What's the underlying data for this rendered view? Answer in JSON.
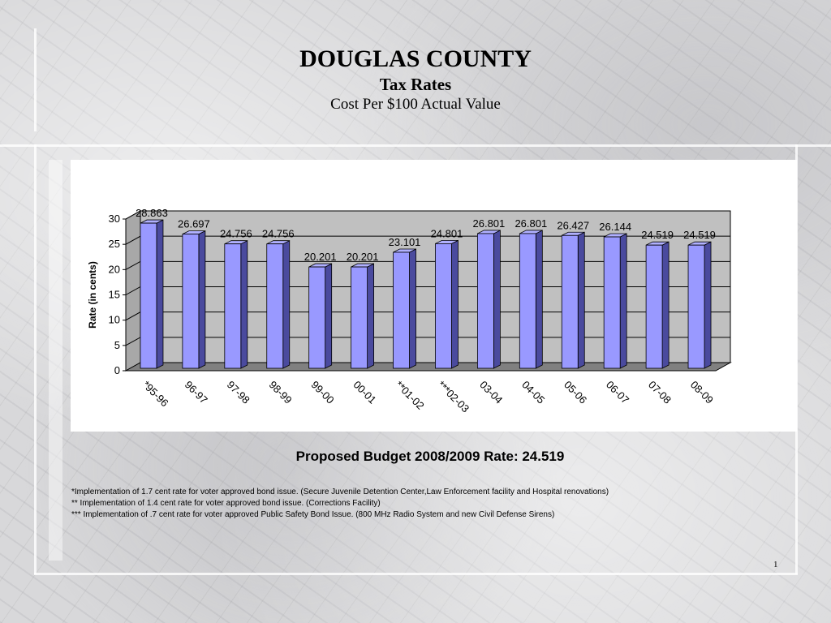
{
  "slide": {
    "title": "DOUGLAS COUNTY",
    "subtitle": "Tax Rates",
    "caption": "Cost Per $100 Actual Value",
    "proposed": "Proposed Budget 2008/2009 Rate: 24.519",
    "footnotes": [
      "*Implementation of 1.7 cent rate for voter approved bond issue. (Secure Juvenile Detention Center,Law Enforcement facility and Hospital renovations)",
      "** Implementation of 1.4 cent rate for voter approved bond issue. (Corrections Facility)",
      "*** Implementation of .7 cent rate for voter approved Public Safety Bond Issue. (800 MHz Radio System and new Civil Defense Sirens)"
    ],
    "page_number": "1"
  },
  "chart_data": {
    "type": "bar",
    "categories": [
      "*95-96",
      "96-97",
      "97-98",
      "98-99",
      "99-00",
      "00-01",
      "**01-02",
      "***02-03",
      "03-04",
      "04-05",
      "05-06",
      "06-07",
      "07-08",
      "08-09"
    ],
    "values": [
      28.863,
      26.697,
      24.756,
      24.756,
      20.201,
      20.201,
      23.101,
      24.801,
      26.801,
      26.801,
      26.427,
      26.144,
      24.519,
      24.519
    ],
    "data_labels": [
      "28.863",
      "26.697",
      "24.756",
      "24.756",
      "20.201",
      "20.201",
      "23.101",
      "24.801",
      "26.801",
      "26.801",
      "26.427",
      "26.144",
      "24.519",
      "24.519"
    ],
    "ylabel": "Rate (in cents)",
    "xlabel": "",
    "ylim": [
      0,
      30
    ],
    "yticks": [
      0,
      5,
      10,
      15,
      20,
      25,
      30
    ],
    "grid": true,
    "style": "3d",
    "colors": {
      "bar_front": "#9999ff",
      "bar_side": "#4a4a9e",
      "bar_top": "#b0b0ff",
      "back_wall": "#c0c0c0",
      "floor": "#808080"
    }
  }
}
